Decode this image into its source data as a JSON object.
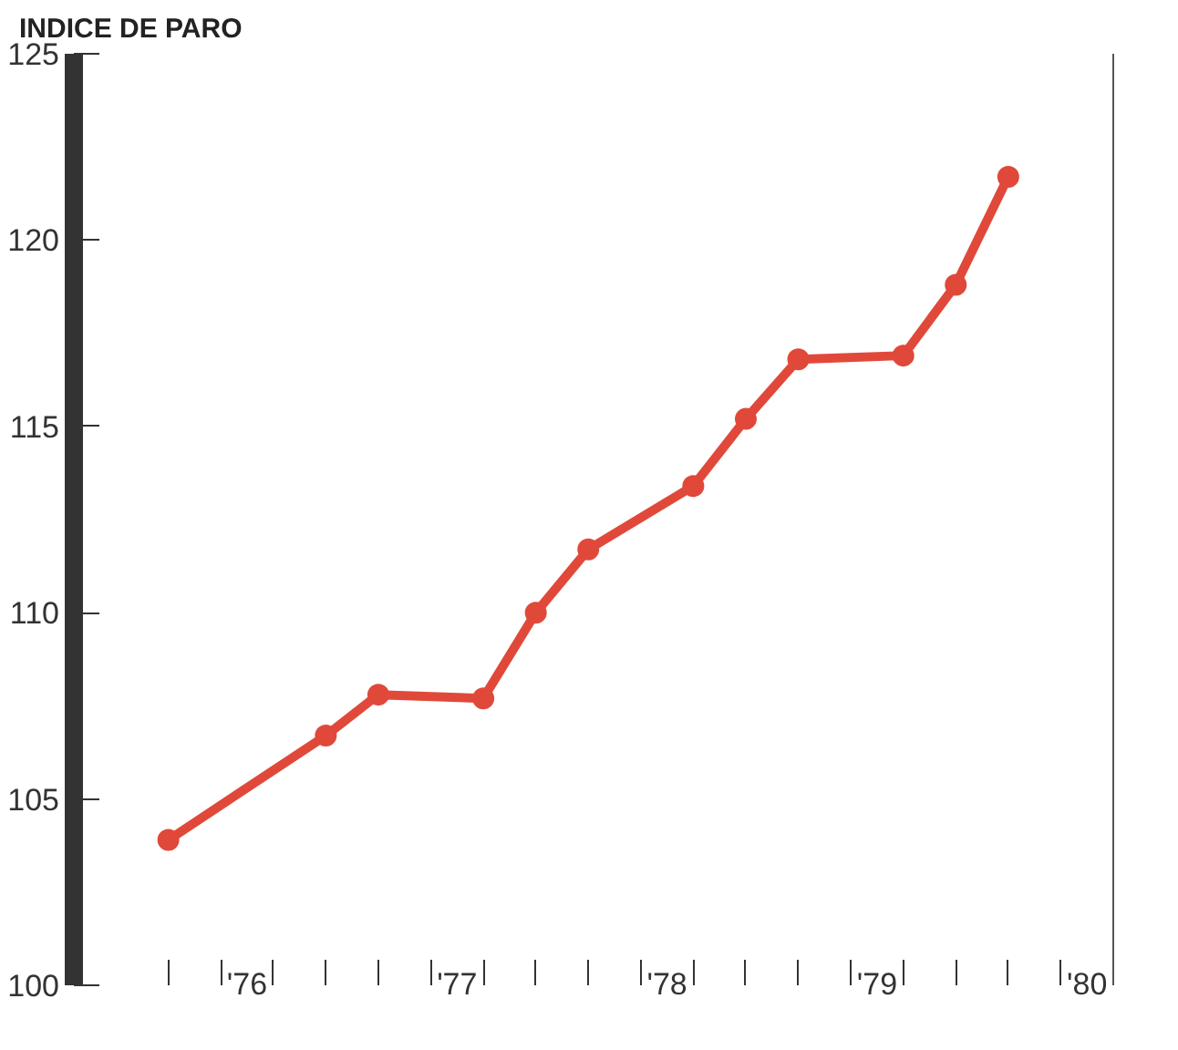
{
  "chart_data": {
    "type": "line",
    "title": "INDICE DE PARO",
    "x": [
      75.625,
      76.375,
      76.625,
      77.125,
      77.375,
      77.625,
      78.125,
      78.375,
      78.625,
      79.125,
      79.375,
      79.625
    ],
    "series": [
      {
        "color": "#e0493a",
        "values": [
          103.9,
          106.7,
          107.8,
          107.7,
          110.0,
          111.7,
          113.4,
          115.2,
          116.8,
          116.9,
          118.8,
          121.7
        ]
      }
    ],
    "xlim": [
      75.175,
      80.125
    ],
    "xticks": [
      {
        "value": 75.625,
        "label": null
      },
      {
        "value": 75.875,
        "label": null
      },
      {
        "value": 76,
        "label": "'76"
      },
      {
        "value": 76.125,
        "label": null
      },
      {
        "value": 76.375,
        "label": null
      },
      {
        "value": 76.625,
        "label": null
      },
      {
        "value": 76.875,
        "label": null
      },
      {
        "value": 77,
        "label": "'77"
      },
      {
        "value": 77.125,
        "label": null
      },
      {
        "value": 77.375,
        "label": null
      },
      {
        "value": 77.625,
        "label": null
      },
      {
        "value": 77.875,
        "label": null
      },
      {
        "value": 78,
        "label": "'78"
      },
      {
        "value": 78.125,
        "label": null
      },
      {
        "value": 78.375,
        "label": null
      },
      {
        "value": 78.625,
        "label": null
      },
      {
        "value": 78.875,
        "label": null
      },
      {
        "value": 79,
        "label": "'79"
      },
      {
        "value": 79.125,
        "label": null
      },
      {
        "value": 79.375,
        "label": null
      },
      {
        "value": 79.625,
        "label": null
      },
      {
        "value": 79.875,
        "label": null
      },
      {
        "value": 80,
        "label": "'80"
      },
      {
        "value": 80.125,
        "label": null
      }
    ],
    "ylim": [
      100,
      125
    ],
    "yticks": [
      100,
      105,
      110,
      115,
      120,
      125
    ],
    "marker": "circle",
    "line_style": "solid"
  }
}
